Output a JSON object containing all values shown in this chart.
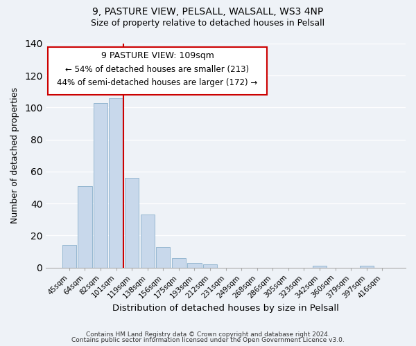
{
  "title1": "9, PASTURE VIEW, PELSALL, WALSALL, WS3 4NP",
  "title2": "Size of property relative to detached houses in Pelsall",
  "xlabel": "Distribution of detached houses by size in Pelsall",
  "ylabel": "Number of detached properties",
  "categories": [
    "45sqm",
    "64sqm",
    "82sqm",
    "101sqm",
    "119sqm",
    "138sqm",
    "156sqm",
    "175sqm",
    "193sqm",
    "212sqm",
    "231sqm",
    "249sqm",
    "268sqm",
    "286sqm",
    "305sqm",
    "323sqm",
    "342sqm",
    "360sqm",
    "379sqm",
    "397sqm",
    "416sqm"
  ],
  "values": [
    14,
    51,
    103,
    106,
    56,
    33,
    13,
    6,
    3,
    2,
    0,
    0,
    0,
    0,
    0,
    0,
    1,
    0,
    0,
    1,
    0
  ],
  "bar_color": "#c8d8eb",
  "bar_edge_color": "#8ab0cc",
  "red_line_color": "#cc0000",
  "annotation_title": "9 PASTURE VIEW: 109sqm",
  "annotation_line1": "← 54% of detached houses are smaller (213)",
  "annotation_line2": "44% of semi-detached houses are larger (172) →",
  "annotation_box_color": "#ffffff",
  "annotation_box_edge": "#cc0000",
  "ylim": [
    0,
    140
  ],
  "yticks": [
    0,
    20,
    40,
    60,
    80,
    100,
    120,
    140
  ],
  "footer1": "Contains HM Land Registry data © Crown copyright and database right 2024.",
  "footer2": "Contains public sector information licensed under the Open Government Licence v3.0.",
  "background_color": "#eef2f7"
}
